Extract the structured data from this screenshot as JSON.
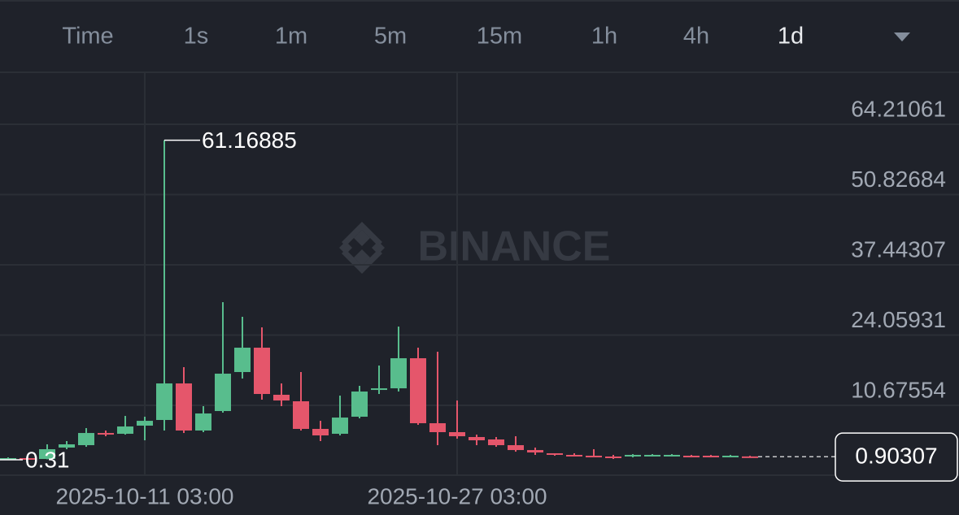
{
  "tabs": {
    "items": [
      "Time",
      "1s",
      "1m",
      "5m",
      "15m",
      "1h",
      "4h",
      "1d"
    ],
    "active": 7
  },
  "chart_data": {
    "type": "candlestick",
    "watermark": "BINANCE",
    "categories": [
      null,
      null,
      null,
      null,
      null,
      null,
      null,
      "2025-10-11 03:00",
      null,
      null,
      null,
      null,
      null,
      null,
      null,
      null,
      null,
      null,
      null,
      null,
      null,
      null,
      null,
      "2025-10-27 03:00",
      null,
      null,
      null,
      null,
      null,
      null,
      null,
      null,
      null,
      null,
      null,
      null,
      null,
      null,
      null
    ],
    "open": [
      0.46,
      0.62,
      0.46,
      2.63,
      3.09,
      5.41,
      5.26,
      6.81,
      7.89,
      14.85,
      5.88,
      9.59,
      17.02,
      21.66,
      12.69,
      11.45,
      6.19,
      5.26,
      8.51,
      13.61,
      13.92,
      19.65,
      7.27,
      5.57,
      4.64,
      4.18,
      3.09,
      2.16,
      1.55,
      1.24,
      1.08,
      0.93,
      0.93,
      1.08,
      1.08,
      1.08,
      1.08,
      0.93,
      0.95
    ],
    "high": [
      0.77,
      0.77,
      3.25,
      3.87,
      6.34,
      5.88,
      8.66,
      8.51,
      61.16885,
      17.95,
      10.52,
      30.33,
      27.54,
      25.53,
      14.85,
      17.02,
      7.73,
      12.53,
      14.39,
      18.26,
      25.68,
      21.66,
      20.89,
      11.6,
      5.1,
      4.64,
      4.79,
      2.63,
      1.55,
      1.55,
      2.32,
      1.24,
      1.39,
      1.39,
      1.39,
      1.24,
      1.24,
      1.24,
      1.08
    ],
    "low": [
      0.31,
      0.33353,
      0.4,
      2.32,
      2.78,
      4.79,
      5.1,
      4.02,
      5.88,
      5.41,
      5.57,
      9.28,
      15.78,
      11.76,
      10.52,
      5.88,
      3.87,
      4.95,
      8.2,
      12.84,
      13.31,
      6.96,
      3.09,
      4.33,
      3.09,
      2.78,
      1.85,
      1.24,
      1.08,
      0.93,
      0.77,
      0.46,
      0.77,
      0.93,
      0.93,
      0.77,
      0.77,
      0.93,
      0.77
    ],
    "close": [
      0.62,
      0.36,
      2.32,
      3.25,
      5.41,
      5.1,
      6.65,
      7.73,
      14.85,
      5.88,
      9.13,
      16.71,
      21.66,
      12.84,
      11.6,
      6.19,
      4.95,
      8.35,
      13.31,
      13.92,
      19.65,
      7.27,
      5.57,
      4.79,
      4.02,
      3.09,
      2.16,
      1.7,
      1.24,
      1.08,
      0.93,
      0.77,
      1.24,
      1.24,
      1.24,
      0.93,
      0.93,
      1.08,
      0.90307
    ],
    "ylim": [
      -2.63,
      73.96
    ],
    "yticks": [
      10.67554,
      24.05931,
      37.44307,
      50.82684,
      64.21061
    ],
    "up_color": "#58bd8d",
    "down_color": "#e5566b",
    "grid": true
  }
}
